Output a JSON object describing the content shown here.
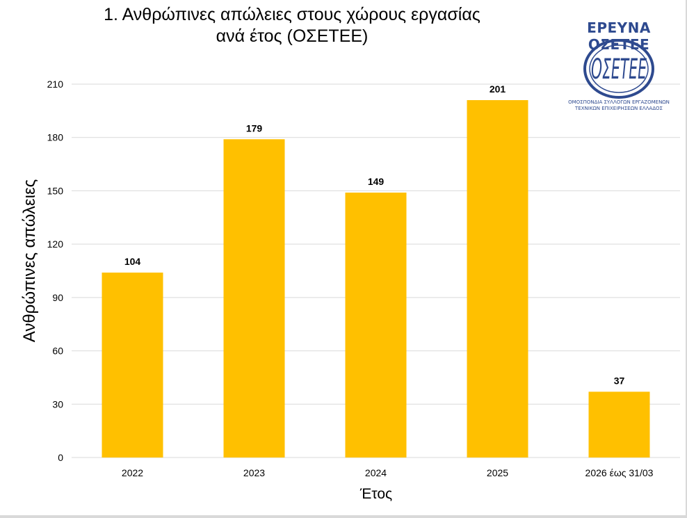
{
  "chart_data": {
    "type": "bar",
    "title_lines": [
      "1. Ανθρώπινες απώλειες στους χώρους εργασίας",
      "ανά έτος (ΟΣΕΤΕΕ)"
    ],
    "categories": [
      "2022",
      "2023",
      "2024",
      "2025",
      "2026 έως 31/03"
    ],
    "values": [
      104,
      179,
      149,
      201,
      37
    ],
    "data_labels": [
      "104",
      "179",
      "149",
      "201",
      "37"
    ],
    "xlabel": "Έτος",
    "ylabel": "Ανθρώπινες απώλειες",
    "ylim": [
      0,
      210
    ],
    "yticks": [
      "0",
      "30",
      "60",
      "90",
      "120",
      "150",
      "180",
      "210"
    ],
    "grid": true,
    "legend": "none",
    "bar_color": "#FFC000",
    "grid_color": "#d9d9d9"
  },
  "logo": {
    "heading": "ΕΡΕΥΝΑ ΟΣΕΤΕΕ",
    "caption_line1": "ΟΜΟΣΠΟΝΔΙΑ ΣΥΛΛΟΓΩΝ ΕΡΓΑΖΟΜΕΝΩΝ",
    "caption_line2": "ΤΕΧΝΙΚΩΝ ΕΠΙΧΕΙΡΗΣΕΩΝ ΕΛΛΑΔΟΣ",
    "color": "#2E4A8F"
  }
}
